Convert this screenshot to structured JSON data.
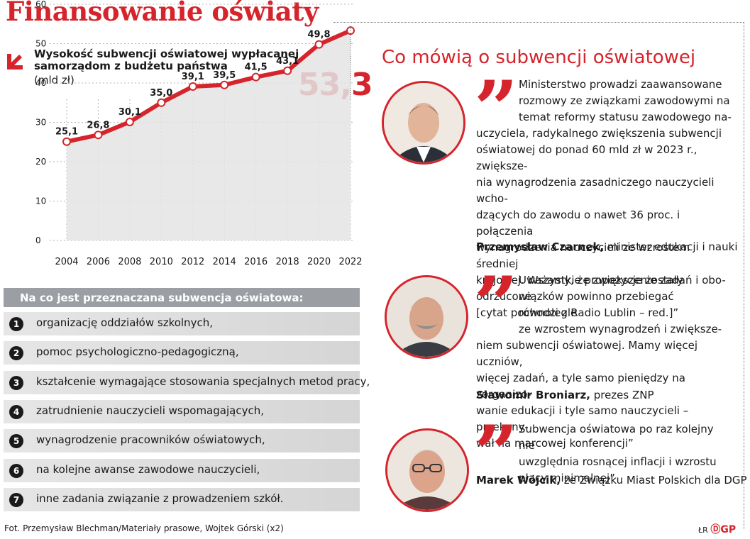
{
  "title": "Finansowanie oświaty",
  "chart_header": {
    "title": "Wysokość subwencji oświatowej wypłacanej samorządom z budżetu państwa",
    "unit": "(mld zł)",
    "highlight_value": "53,3"
  },
  "chart_data": {
    "type": "area",
    "x": [
      "2004",
      "2006",
      "2008",
      "2010",
      "2012",
      "2014",
      "2016",
      "2018",
      "2020",
      "2022"
    ],
    "series": [
      {
        "values": [
          25.1,
          26.8,
          30.1,
          35.0,
          39.1,
          39.5,
          41.5,
          43.1,
          49.8,
          53.3
        ]
      }
    ],
    "data_labels": [
      "25,1",
      "26,8",
      "30,1",
      "35,0",
      "39,1",
      "39,5",
      "41,5",
      "43,1",
      "49,8"
    ],
    "y_ticks": [
      "0",
      "10",
      "20",
      "30",
      "40",
      "50",
      "60"
    ],
    "ylim": [
      0,
      60
    ],
    "colors": {
      "line": "#d5242b",
      "fill": "#e4e4e4",
      "grid": "#b5b5b5"
    }
  },
  "uses": {
    "title": "Na co jest przeznaczana subwencja oświatowa:",
    "items": [
      {
        "num": "1",
        "text": "organizację oddziałów szkolnych,"
      },
      {
        "num": "2",
        "text": "pomoc psychologiczno-pedagogiczną,"
      },
      {
        "num": "3",
        "text": "kształcenie wymagające stosowania specjalnych metod pracy,"
      },
      {
        "num": "4",
        "text": "zatrudnienie nauczycieli wspomagających,"
      },
      {
        "num": "5",
        "text": "wynagrodzenie pracowników oświatowych,"
      },
      {
        "num": "6",
        "text": "na kolejne awanse zawodowe nauczycieli,"
      },
      {
        "num": "7",
        "text": "inne zadania związanie z prowadzeniem szkół."
      }
    ]
  },
  "quotes": {
    "title": "Co mówią o subwencji oświatowej",
    "items": [
      {
        "text_lines": [
          "Ministerstwo prowadzi zaawansowane",
          "rozmowy ze związkami zawodowymi na",
          "temat reformy statusu zawodowego na-"
        ],
        "text_rest": [
          "uczyciela, radykalnego zwiększenia subwencji",
          "oświatowej do ponad 60 mld zł w 2023 r., zwiększe-",
          "nia wynagrodzenia zasadniczego nauczycieli wcho-",
          "dzących do zawodu o nawet 36 proc. i połączenia",
          "wynagrodzenia nauczycieli ze wzrostem średniej",
          "krajowej. Wszystkie propozycje zostały odrzucone",
          "[cytat pochodzi z Radio Lublin – red.]”"
        ],
        "name": "Przemysław Czarnek,",
        "role": " minister edukacji i nauki"
      },
      {
        "text_lines": [
          "Uważamy, że zwiększenie zadań i obo-",
          "wiązków powinno przebiegać równolegle",
          "ze wzrostem wynagrodzeń i zwiększe-"
        ],
        "text_rest": [
          "niem subwencji oświatowej. Mamy więcej uczniów,",
          "więcej zadań, a tyle samo pieniędzy na zorganizo-",
          "wanie edukacji i tyle samo nauczycieli – przekony-",
          "wał na marcowej konferencji”"
        ],
        "name": "Sławomir Broniarz,",
        "role": " prezes ZNP"
      },
      {
        "text_lines": [
          "Subwencja oświatowa po raz kolejny nie",
          "uwzględnia rosnącej inflacji i wzrostu",
          "płacy minimalnej”"
        ],
        "text_rest": [],
        "name": "Marek Wójcik,",
        "role": " ze Związku Miast Polskich dla DGP"
      }
    ]
  },
  "footer": "Fot. Przemysław Blechman/Materiały prasowe, Wojtek Górski (x2)",
  "logo": {
    "initials": "ŁR",
    "brand": "GP"
  }
}
